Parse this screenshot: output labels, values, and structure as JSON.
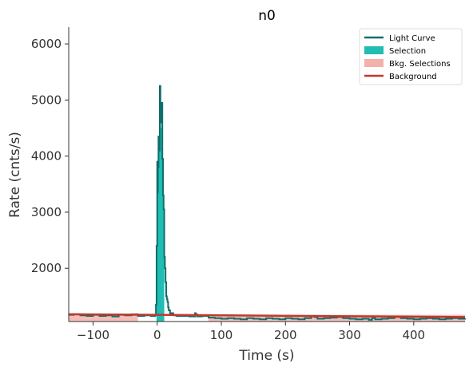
{
  "chart_data": {
    "type": "line",
    "title": "n0",
    "xlabel": "Time (s)",
    "ylabel": "Rate (cnts/s)",
    "xlim": [
      -138,
      480
    ],
    "ylim": [
      1050,
      6300
    ],
    "xticks": [
      -100,
      0,
      100,
      200,
      300,
      400
    ],
    "xtick_labels": [
      "−100",
      "0",
      "100",
      "200",
      "300",
      "400"
    ],
    "yticks": [
      2000,
      3000,
      4000,
      5000,
      6000
    ],
    "ytick_labels": [
      "2000",
      "3000",
      "4000",
      "5000",
      "6000"
    ],
    "legend_position": "top-right",
    "legend": [
      {
        "label": "Light Curve",
        "kind": "line",
        "color": "#0e6e6b"
      },
      {
        "label": "Selection",
        "kind": "patch",
        "color": "#1fbdb3"
      },
      {
        "label": "Bkg. Selections",
        "kind": "patch",
        "color": "#f4b1aa"
      },
      {
        "label": "Background",
        "kind": "line",
        "color": "#c0392b"
      }
    ],
    "light_curve": {
      "color": "#0e6e6b",
      "bin_width": 1.024,
      "points": [
        [
          -138,
          1170
        ],
        [
          -130,
          1180
        ],
        [
          -120,
          1160
        ],
        [
          -110,
          1150
        ],
        [
          -100,
          1170
        ],
        [
          -90,
          1150
        ],
        [
          -80,
          1160
        ],
        [
          -70,
          1140
        ],
        [
          -60,
          1170
        ],
        [
          -50,
          1160
        ],
        [
          -40,
          1180
        ],
        [
          -30,
          1150
        ],
        [
          -20,
          1160
        ],
        [
          -10,
          1150
        ],
        [
          -3,
          1160
        ],
        [
          -2,
          1350
        ],
        [
          -1,
          2400
        ],
        [
          0,
          3900
        ],
        [
          0.5,
          3350
        ],
        [
          1,
          3800
        ],
        [
          2,
          4350
        ],
        [
          3,
          4100
        ],
        [
          4,
          5250
        ],
        [
          5,
          4700
        ],
        [
          6,
          4600
        ],
        [
          7,
          4950
        ],
        [
          8,
          3950
        ],
        [
          9,
          3300
        ],
        [
          10,
          3050
        ],
        [
          11,
          2200
        ],
        [
          12,
          2000
        ],
        [
          13,
          1750
        ],
        [
          14,
          1500
        ],
        [
          15,
          1450
        ],
        [
          16,
          1400
        ],
        [
          17,
          1300
        ],
        [
          18,
          1250
        ],
        [
          20,
          1200
        ],
        [
          25,
          1160
        ],
        [
          30,
          1150
        ],
        [
          40,
          1150
        ],
        [
          50,
          1140
        ],
        [
          58,
          1140
        ],
        [
          59,
          1200
        ],
        [
          60,
          1180
        ],
        [
          62,
          1140
        ],
        [
          70,
          1150
        ],
        [
          80,
          1120
        ],
        [
          90,
          1110
        ],
        [
          100,
          1100
        ],
        [
          110,
          1110
        ],
        [
          120,
          1100
        ],
        [
          130,
          1090
        ],
        [
          140,
          1110
        ],
        [
          150,
          1100
        ],
        [
          160,
          1090
        ],
        [
          170,
          1110
        ],
        [
          180,
          1100
        ],
        [
          190,
          1090
        ],
        [
          200,
          1110
        ],
        [
          210,
          1100
        ],
        [
          220,
          1090
        ],
        [
          230,
          1110
        ],
        [
          240,
          1140
        ],
        [
          245,
          1130
        ],
        [
          250,
          1100
        ],
        [
          260,
          1110
        ],
        [
          270,
          1120
        ],
        [
          280,
          1130
        ],
        [
          290,
          1110
        ],
        [
          300,
          1100
        ],
        [
          310,
          1090
        ],
        [
          320,
          1100
        ],
        [
          330,
          1080
        ],
        [
          335,
          1110
        ],
        [
          340,
          1090
        ],
        [
          350,
          1100
        ],
        [
          360,
          1110
        ],
        [
          370,
          1130
        ],
        [
          380,
          1110
        ],
        [
          390,
          1100
        ],
        [
          400,
          1090
        ],
        [
          410,
          1100
        ],
        [
          420,
          1110
        ],
        [
          430,
          1100
        ],
        [
          440,
          1090
        ],
        [
          450,
          1100
        ],
        [
          460,
          1110
        ],
        [
          470,
          1100
        ],
        [
          480,
          1110
        ]
      ]
    },
    "selection": {
      "color": "#1fbdb3",
      "range": [
        -1,
        10
      ],
      "points": [
        [
          -1,
          2400
        ],
        [
          0,
          3350
        ],
        [
          1,
          3800
        ],
        [
          2,
          4350
        ],
        [
          3,
          4100
        ],
        [
          4,
          5200
        ],
        [
          5,
          4700
        ],
        [
          6,
          4500
        ],
        [
          7,
          4900
        ],
        [
          8,
          3900
        ],
        [
          9,
          3250
        ],
        [
          10,
          3000
        ]
      ]
    },
    "bkg_selections": {
      "color": "#f4b1aa",
      "ranges": [
        [
          -138,
          -30
        ],
        [
          80,
          480
        ]
      ]
    },
    "background": {
      "color": "#c0392b",
      "points": [
        [
          -138,
          1180
        ],
        [
          480,
          1130
        ]
      ]
    }
  }
}
